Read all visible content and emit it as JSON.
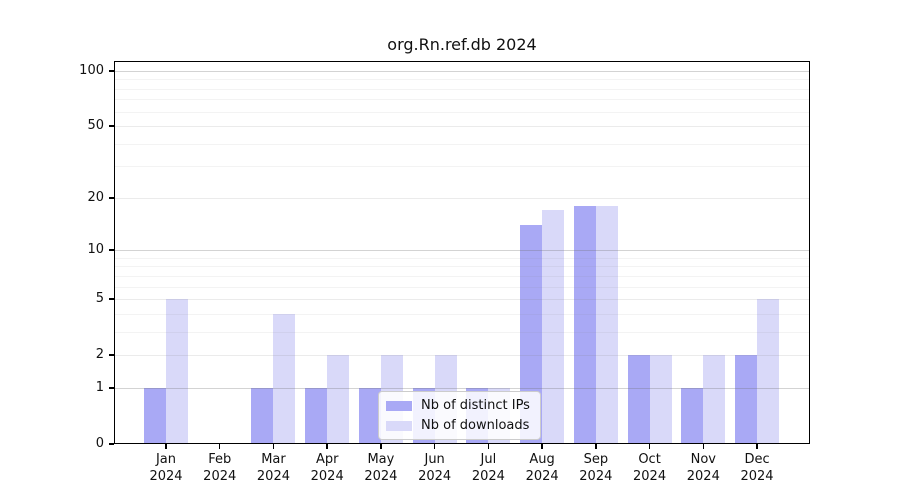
{
  "title": "org.Rn.ref.db 2024",
  "colors": {
    "ips_bar": "#a9a9f5",
    "downloads_bar": "#d9d9f9",
    "axis": "#000000",
    "background": "#ffffff"
  },
  "legend": {
    "items": [
      {
        "label": "Nb of distinct IPs",
        "color": "#a9a9f5"
      },
      {
        "label": "Nb of downloads",
        "color": "#d9d9f9"
      }
    ],
    "position": "lower center"
  },
  "chart_data": {
    "type": "bar",
    "title": "org.Rn.ref.db 2024",
    "categories": [
      "Jan 2024",
      "Feb 2024",
      "Mar 2024",
      "Apr 2024",
      "May 2024",
      "Jun 2024",
      "Jul 2024",
      "Aug 2024",
      "Sep 2024",
      "Oct 2024",
      "Nov 2024",
      "Dec 2024"
    ],
    "series": [
      {
        "name": "Nb of distinct IPs",
        "color": "#a9a9f5",
        "values": [
          1,
          0,
          1,
          1,
          1,
          1,
          1,
          14,
          18,
          2,
          1,
          2
        ]
      },
      {
        "name": "Nb of downloads",
        "color": "#d9d9f9",
        "values": [
          5,
          0,
          4,
          2,
          2,
          2,
          1,
          17,
          18,
          2,
          2,
          5
        ]
      }
    ],
    "xlabel": "",
    "ylabel": "",
    "y_axis": {
      "scale": "log10(1+v)",
      "major_ticks": [
        0,
        1,
        2,
        5,
        10,
        20,
        50,
        100
      ],
      "minor_gridlines": [
        3,
        4,
        6,
        7,
        8,
        9,
        30,
        40,
        60,
        70,
        80,
        90
      ],
      "ylim": [
        0,
        113
      ]
    },
    "grid": true,
    "legend_position": "lower center"
  }
}
